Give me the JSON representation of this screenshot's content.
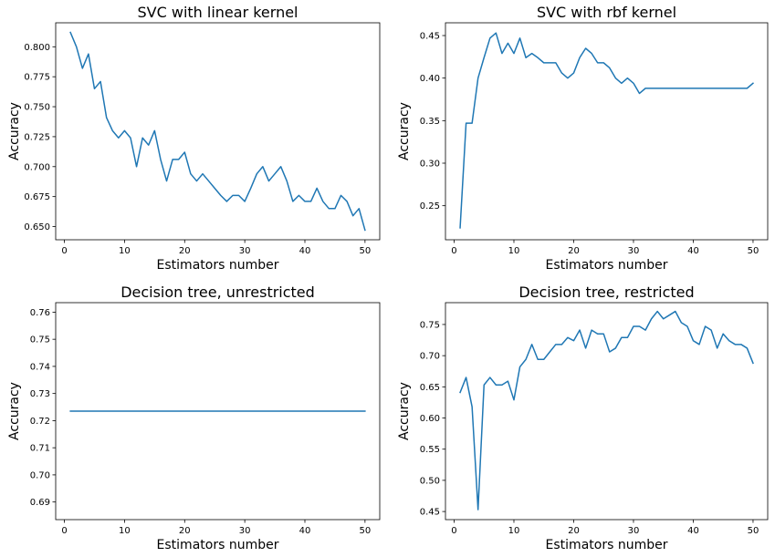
{
  "chart_data": [
    {
      "type": "line",
      "title": "SVC with linear kernel",
      "xlabel": "Estimators number",
      "ylabel": "Accuracy",
      "xlim": [
        -1.45,
        52.45
      ],
      "ylim": [
        0.639,
        0.82
      ],
      "xticks": [
        0,
        10,
        20,
        30,
        40,
        50
      ],
      "xtick_labels": [
        "0",
        "10",
        "20",
        "30",
        "40",
        "50"
      ],
      "yticks": [
        0.65,
        0.675,
        0.7,
        0.725,
        0.75,
        0.775,
        0.8
      ],
      "ytick_labels": [
        "0.650",
        "0.675",
        "0.700",
        "0.725",
        "0.750",
        "0.775",
        "0.800"
      ],
      "grid": false,
      "color": "#1f77b4",
      "series": [
        {
          "x": [
            1,
            2,
            3,
            4,
            5,
            6,
            7,
            8,
            9,
            10,
            11,
            12,
            13,
            14,
            15,
            16,
            17,
            18,
            19,
            20,
            21,
            22,
            23,
            24,
            25,
            26,
            27,
            28,
            29,
            30,
            31,
            32,
            33,
            34,
            35,
            36,
            37,
            38,
            39,
            40,
            41,
            42,
            43,
            44,
            45,
            46,
            47,
            48,
            49,
            50
          ],
          "y": [
            0.812,
            0.8,
            0.782,
            0.794,
            0.765,
            0.771,
            0.741,
            0.73,
            0.724,
            0.73,
            0.724,
            0.7,
            0.724,
            0.718,
            0.73,
            0.706,
            0.688,
            0.706,
            0.706,
            0.712,
            0.694,
            0.688,
            0.694,
            0.688,
            0.682,
            0.676,
            0.671,
            0.676,
            0.676,
            0.671,
            0.682,
            0.694,
            0.7,
            0.688,
            0.694,
            0.7,
            0.688,
            0.671,
            0.676,
            0.671,
            0.671,
            0.682,
            0.671,
            0.665,
            0.665,
            0.676,
            0.671,
            0.659,
            0.665,
            0.647
          ]
        }
      ]
    },
    {
      "type": "line",
      "title": "SVC with rbf kernel",
      "xlabel": "Estimators number",
      "ylabel": "Accuracy",
      "xlim": [
        -1.45,
        52.45
      ],
      "ylim": [
        0.21,
        0.465
      ],
      "xticks": [
        0,
        10,
        20,
        30,
        40,
        50
      ],
      "xtick_labels": [
        "0",
        "10",
        "20",
        "30",
        "40",
        "50"
      ],
      "yticks": [
        0.25,
        0.3,
        0.35,
        0.4,
        0.45
      ],
      "ytick_labels": [
        "0.25",
        "0.30",
        "0.35",
        "0.40",
        "0.45"
      ],
      "grid": false,
      "color": "#1f77b4",
      "series": [
        {
          "x": [
            1,
            2,
            3,
            4,
            5,
            6,
            7,
            8,
            9,
            10,
            11,
            12,
            13,
            14,
            15,
            16,
            17,
            18,
            19,
            20,
            21,
            22,
            23,
            24,
            25,
            26,
            27,
            28,
            29,
            30,
            31,
            32,
            33,
            34,
            35,
            36,
            37,
            38,
            39,
            40,
            41,
            42,
            43,
            44,
            45,
            46,
            47,
            48,
            49,
            50
          ],
          "y": [
            0.224,
            0.347,
            0.347,
            0.4,
            0.424,
            0.447,
            0.453,
            0.429,
            0.441,
            0.429,
            0.447,
            0.424,
            0.429,
            0.424,
            0.418,
            0.418,
            0.418,
            0.406,
            0.4,
            0.406,
            0.424,
            0.435,
            0.429,
            0.418,
            0.418,
            0.412,
            0.4,
            0.394,
            0.4,
            0.394,
            0.382,
            0.388,
            0.388,
            0.388,
            0.388,
            0.388,
            0.388,
            0.388,
            0.388,
            0.388,
            0.388,
            0.388,
            0.388,
            0.388,
            0.388,
            0.388,
            0.388,
            0.388,
            0.388,
            0.394
          ]
        }
      ]
    },
    {
      "type": "line",
      "title": "Decision tree, unrestricted",
      "xlabel": "Estimators number",
      "ylabel": "Accuracy",
      "xlim": [
        -1.45,
        52.45
      ],
      "ylim": [
        0.6835,
        0.7635
      ],
      "xticks": [
        0,
        10,
        20,
        30,
        40,
        50
      ],
      "xtick_labels": [
        "0",
        "10",
        "20",
        "30",
        "40",
        "50"
      ],
      "yticks": [
        0.69,
        0.7,
        0.71,
        0.72,
        0.73,
        0.74,
        0.75,
        0.76
      ],
      "ytick_labels": [
        "0.69",
        "0.70",
        "0.71",
        "0.72",
        "0.73",
        "0.74",
        "0.75",
        "0.76"
      ],
      "grid": false,
      "color": "#1f77b4",
      "series": [
        {
          "x": [
            1,
            50
          ],
          "y": [
            0.7235,
            0.7235
          ]
        }
      ]
    },
    {
      "type": "line",
      "title": "Decision tree, restricted",
      "xlabel": "Estimators number",
      "ylabel": "Accuracy",
      "xlim": [
        -1.45,
        52.45
      ],
      "ylim": [
        0.437,
        0.785
      ],
      "xticks": [
        0,
        10,
        20,
        30,
        40,
        50
      ],
      "xtick_labels": [
        "0",
        "10",
        "20",
        "30",
        "40",
        "50"
      ],
      "yticks": [
        0.45,
        0.5,
        0.55,
        0.6,
        0.65,
        0.7,
        0.75
      ],
      "ytick_labels": [
        "0.45",
        "0.50",
        "0.55",
        "0.60",
        "0.65",
        "0.70",
        "0.75"
      ],
      "grid": false,
      "color": "#1f77b4",
      "series": [
        {
          "x": [
            1,
            2,
            3,
            4,
            5,
            6,
            7,
            8,
            9,
            10,
            11,
            12,
            13,
            14,
            15,
            16,
            17,
            18,
            19,
            20,
            21,
            22,
            23,
            24,
            25,
            26,
            27,
            28,
            29,
            30,
            31,
            32,
            33,
            34,
            35,
            36,
            37,
            38,
            39,
            40,
            41,
            42,
            43,
            44,
            45,
            46,
            47,
            48,
            49,
            50
          ],
          "y": [
            0.641,
            0.665,
            0.618,
            0.453,
            0.653,
            0.665,
            0.653,
            0.653,
            0.659,
            0.629,
            0.682,
            0.694,
            0.718,
            0.694,
            0.694,
            0.706,
            0.718,
            0.718,
            0.729,
            0.724,
            0.741,
            0.712,
            0.741,
            0.735,
            0.735,
            0.706,
            0.712,
            0.729,
            0.729,
            0.747,
            0.747,
            0.741,
            0.759,
            0.771,
            0.759,
            0.765,
            0.771,
            0.753,
            0.747,
            0.724,
            0.718,
            0.747,
            0.741,
            0.712,
            0.735,
            0.724,
            0.718,
            0.718,
            0.712,
            0.688
          ]
        }
      ]
    }
  ]
}
